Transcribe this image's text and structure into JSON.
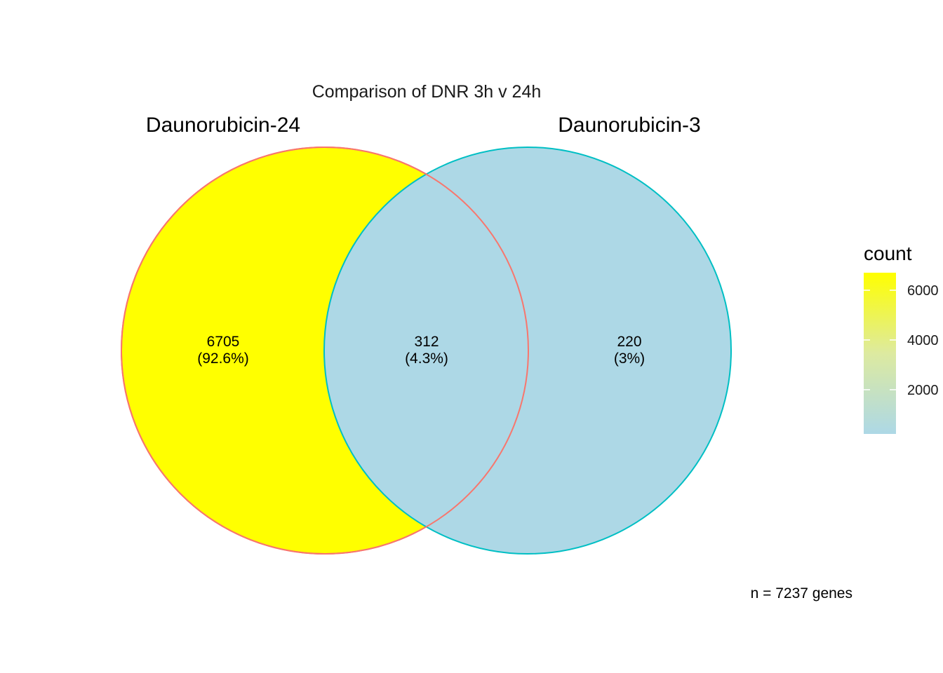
{
  "chart_data": {
    "type": "venn",
    "title": "Comparison of DNR 3h v 24h",
    "sets": [
      {
        "name": "Daunorubicin-24",
        "fill": "#FFFF00",
        "stroke": "#F8766D"
      },
      {
        "name": "Daunorubicin-3",
        "fill": "#ADD8E6",
        "stroke": "#00BFC4"
      }
    ],
    "regions": [
      {
        "sets": [
          "Daunorubicin-24"
        ],
        "count": "6705",
        "percent": "(92.6%)"
      },
      {
        "sets": [
          "Daunorubicin-24",
          "Daunorubicin-3"
        ],
        "count": "312",
        "percent": "(4.3%)"
      },
      {
        "sets": [
          "Daunorubicin-3"
        ],
        "count": "220",
        "percent": "(3%)"
      }
    ],
    "legend": {
      "title": "count",
      "position": "right",
      "low_color": "#ADD8E6",
      "high_color": "#FFFF00",
      "range": [
        220,
        6705
      ],
      "ticks": [
        2000,
        4000,
        6000
      ],
      "tick_labels": [
        "2000",
        "4000",
        "6000"
      ]
    },
    "caption": "n = 7237 genes"
  }
}
